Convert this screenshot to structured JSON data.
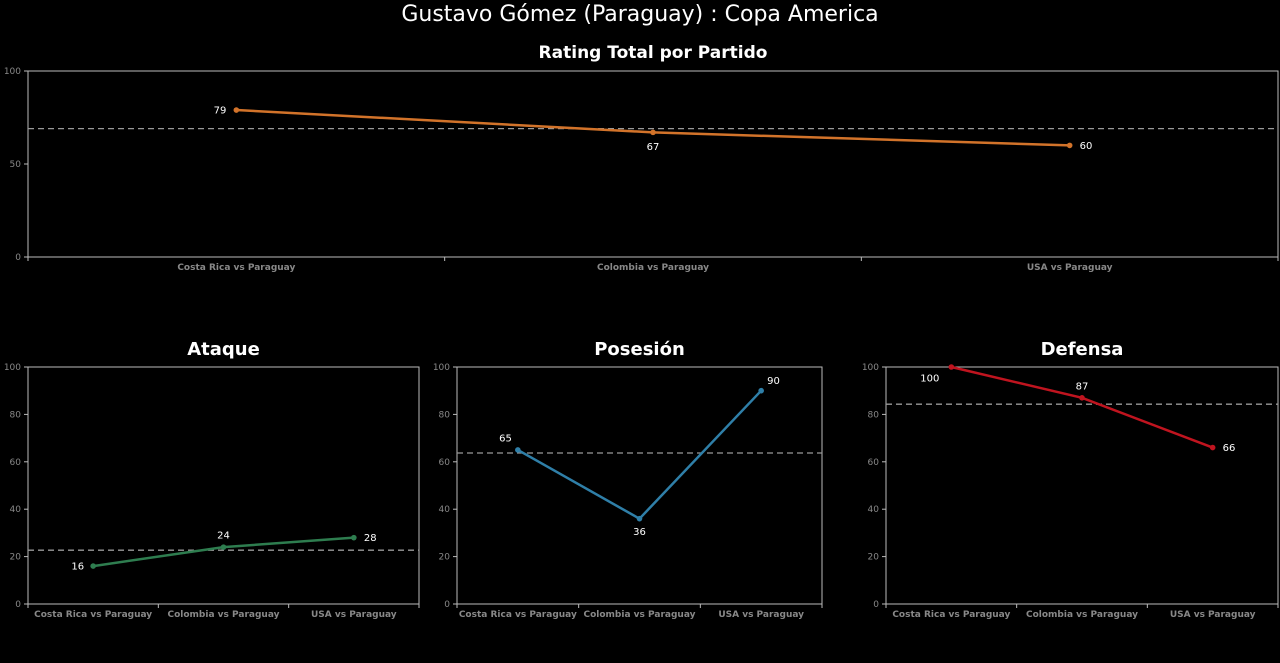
{
  "title": "Gustavo Gómez (Paraguay) :  Copa  America",
  "chart_data": [
    {
      "type": "line",
      "title": "Rating Total por Partido",
      "categories": [
        "Costa Rica vs Paraguay",
        "Colombia vs Paraguay",
        "USA vs Paraguay"
      ],
      "values": [
        79,
        67,
        60
      ],
      "data_labels": [
        "79",
        "67",
        "60"
      ],
      "reference_line": 69,
      "ylim": [
        0,
        100
      ],
      "yticks": [
        "0",
        "50",
        "100"
      ],
      "color": "#d2732a"
    },
    {
      "type": "line",
      "title": "Ataque",
      "categories": [
        "Costa Rica vs Paraguay",
        "Colombia vs Paraguay",
        "USA vs Paraguay"
      ],
      "values": [
        16,
        24,
        28
      ],
      "data_labels": [
        "16",
        "24",
        "28"
      ],
      "reference_line": 22.7,
      "ylim": [
        0,
        100
      ],
      "yticks": [
        "0",
        "20",
        "40",
        "60",
        "80",
        "100"
      ],
      "color": "#2e7d4f"
    },
    {
      "type": "line",
      "title": "Posesión",
      "categories": [
        "Costa Rica vs Paraguay",
        "Colombia vs Paraguay",
        "USA vs Paraguay"
      ],
      "values": [
        65,
        36,
        90
      ],
      "data_labels": [
        "65",
        "36",
        "90"
      ],
      "reference_line": 63.7,
      "ylim": [
        0,
        100
      ],
      "yticks": [
        "0",
        "20",
        "40",
        "60",
        "80",
        "100"
      ],
      "color": "#2f7fa8"
    },
    {
      "type": "line",
      "title": "Defensa",
      "categories": [
        "Costa Rica vs Paraguay",
        "Colombia vs Paraguay",
        "USA vs Paraguay"
      ],
      "values": [
        100,
        87,
        66
      ],
      "data_labels": [
        "100",
        "87",
        "66"
      ],
      "reference_line": 84.3,
      "ylim": [
        0,
        100
      ],
      "yticks": [
        "0",
        "20",
        "40",
        "60",
        "80",
        "100"
      ],
      "color": "#c0141f"
    }
  ]
}
